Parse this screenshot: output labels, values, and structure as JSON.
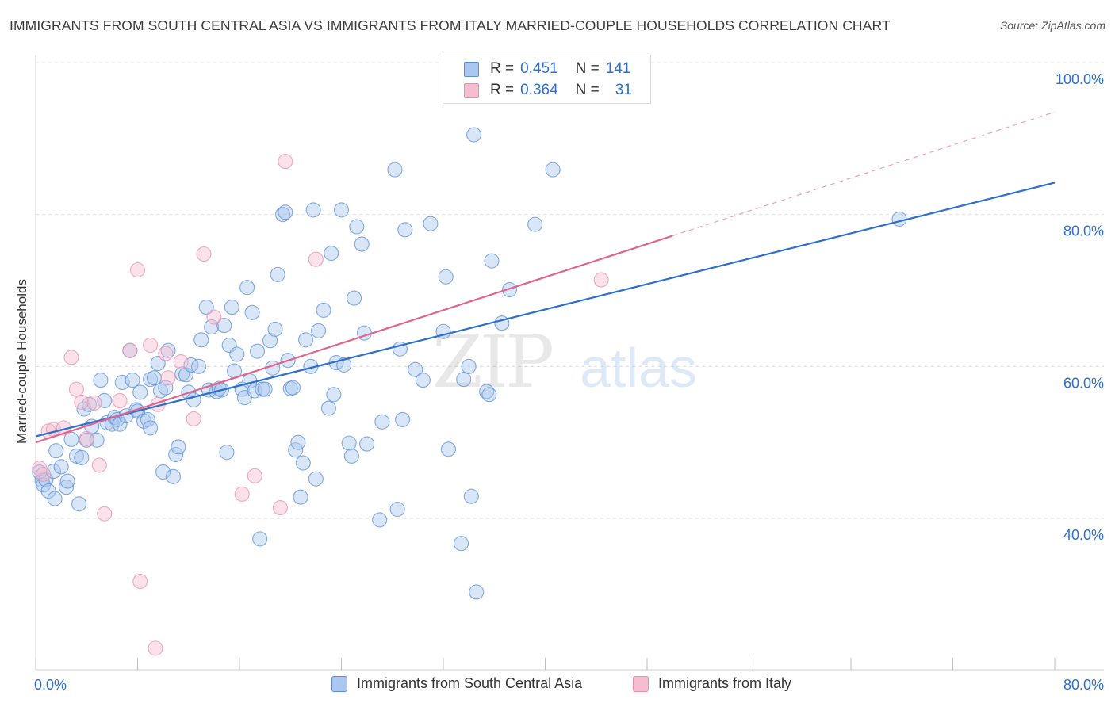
{
  "title": "IMMIGRANTS FROM SOUTH CENTRAL ASIA VS IMMIGRANTS FROM ITALY MARRIED-COUPLE HOUSEHOLDS CORRELATION CHART",
  "source": "Source: ZipAtlas.com",
  "watermark": {
    "zip": "ZIP",
    "atlas": "atlas"
  },
  "colors": {
    "blue": "#2d6fcf",
    "blue_fill": "#aac7f0",
    "pink": "#e0648e",
    "pink_fill": "#f6bcd0",
    "grid": "#dedede",
    "tick_label": "#2d6fcf"
  },
  "legend": {
    "rows": [
      {
        "r_label": "R =",
        "r_value": "0.451",
        "n_label": "N =",
        "n_value": "141"
      },
      {
        "r_label": "R =",
        "r_value": "0.364",
        "n_label": "N =",
        "n_value": "31"
      }
    ]
  },
  "bottom_legend": [
    {
      "label": "Immigrants from South Central Asia"
    },
    {
      "label": "Immigrants from Italy"
    }
  ],
  "chart_data": {
    "type": "scatter",
    "title": "IMMIGRANTS FROM SOUTH CENTRAL ASIA VS IMMIGRANTS FROM ITALY MARRIED-COUPLE HOUSEHOLDS CORRELATION CHART",
    "xlabel": "",
    "ylabel": "Married-couple Households",
    "xlim": [
      0,
      80
    ],
    "ylim": [
      18,
      100
    ],
    "x_tick_labels": [
      {
        "value": 0,
        "label": "0.0%"
      },
      {
        "value": 80,
        "label": "80.0%"
      }
    ],
    "y_tick_labels": [
      {
        "value": 40,
        "label": "40.0%"
      },
      {
        "value": 60,
        "label": "60.0%"
      },
      {
        "value": 80,
        "label": "80.0%"
      },
      {
        "value": 100,
        "label": "100.0%"
      }
    ],
    "x_minor_ticks": [
      0,
      8,
      16,
      24,
      32,
      40,
      48,
      56,
      64,
      72,
      80
    ],
    "y_grid": [
      40,
      60,
      80,
      100
    ],
    "series": [
      {
        "name": "Immigrants from South Central Asia",
        "color": "#2d6fcf",
        "R": 0.451,
        "N": 141,
        "trend": {
          "x0": 0,
          "y0": 50.8,
          "x1": 80,
          "y1": 84.2,
          "style": "solid"
        },
        "points": [
          [
            0.3,
            46.1
          ],
          [
            0.5,
            45.0
          ],
          [
            0.6,
            44.4
          ],
          [
            0.8,
            45.1
          ],
          [
            1.0,
            43.6
          ],
          [
            1.4,
            46.2
          ],
          [
            1.5,
            42.6
          ],
          [
            1.6,
            48.9
          ],
          [
            2.0,
            46.8
          ],
          [
            2.4,
            44.1
          ],
          [
            2.5,
            44.9
          ],
          [
            2.8,
            50.4
          ],
          [
            3.2,
            48.2
          ],
          [
            3.4,
            41.9
          ],
          [
            3.6,
            48.0
          ],
          [
            3.8,
            54.4
          ],
          [
            4.0,
            50.3
          ],
          [
            4.2,
            55.0
          ],
          [
            4.4,
            52.1
          ],
          [
            4.8,
            50.3
          ],
          [
            5.1,
            58.2
          ],
          [
            5.4,
            55.5
          ],
          [
            5.6,
            52.6
          ],
          [
            6.0,
            52.4
          ],
          [
            6.2,
            53.3
          ],
          [
            6.4,
            53.0
          ],
          [
            6.6,
            52.4
          ],
          [
            6.8,
            57.9
          ],
          [
            7.1,
            53.5
          ],
          [
            7.4,
            62.1
          ],
          [
            7.6,
            58.2
          ],
          [
            7.9,
            54.3
          ],
          [
            8.0,
            54.1
          ],
          [
            8.2,
            56.6
          ],
          [
            8.5,
            52.8
          ],
          [
            8.8,
            53.0
          ],
          [
            9.0,
            51.9
          ],
          [
            9.0,
            58.3
          ],
          [
            9.3,
            58.5
          ],
          [
            9.6,
            60.4
          ],
          [
            9.8,
            56.8
          ],
          [
            10.0,
            46.1
          ],
          [
            10.2,
            57.2
          ],
          [
            10.4,
            62.1
          ],
          [
            10.8,
            45.5
          ],
          [
            11.0,
            48.4
          ],
          [
            11.2,
            49.4
          ],
          [
            11.5,
            59.0
          ],
          [
            11.8,
            58.9
          ],
          [
            12.0,
            56.6
          ],
          [
            12.2,
            60.2
          ],
          [
            12.4,
            55.6
          ],
          [
            12.8,
            60.0
          ],
          [
            13.0,
            63.5
          ],
          [
            13.4,
            67.8
          ],
          [
            13.6,
            56.9
          ],
          [
            13.8,
            65.2
          ],
          [
            14.2,
            56.7
          ],
          [
            14.4,
            57.1
          ],
          [
            14.6,
            56.9
          ],
          [
            14.8,
            65.4
          ],
          [
            15.0,
            48.7
          ],
          [
            15.2,
            62.8
          ],
          [
            15.4,
            67.8
          ],
          [
            15.6,
            59.4
          ],
          [
            15.8,
            61.6
          ],
          [
            16.2,
            57.0
          ],
          [
            16.4,
            55.9
          ],
          [
            16.6,
            70.4
          ],
          [
            16.8,
            58.1
          ],
          [
            17.0,
            67.1
          ],
          [
            17.2,
            56.8
          ],
          [
            17.4,
            62.0
          ],
          [
            17.6,
            37.3
          ],
          [
            17.8,
            57.0
          ],
          [
            18.0,
            57.0
          ],
          [
            18.4,
            63.4
          ],
          [
            18.6,
            59.8
          ],
          [
            18.8,
            64.9
          ],
          [
            19.0,
            72.1
          ],
          [
            19.4,
            80.0
          ],
          [
            19.6,
            80.3
          ],
          [
            19.8,
            60.8
          ],
          [
            20.0,
            57.1
          ],
          [
            20.2,
            57.2
          ],
          [
            20.4,
            49.0
          ],
          [
            20.6,
            50.0
          ],
          [
            20.8,
            42.8
          ],
          [
            21.0,
            47.3
          ],
          [
            21.2,
            63.5
          ],
          [
            21.6,
            60.0
          ],
          [
            21.8,
            80.6
          ],
          [
            22.0,
            45.2
          ],
          [
            22.2,
            64.7
          ],
          [
            22.6,
            67.4
          ],
          [
            23.0,
            54.5
          ],
          [
            23.2,
            74.9
          ],
          [
            23.4,
            56.3
          ],
          [
            23.6,
            60.5
          ],
          [
            24.0,
            80.6
          ],
          [
            24.2,
            60.2
          ],
          [
            24.6,
            49.9
          ],
          [
            24.8,
            48.2
          ],
          [
            25.0,
            69.0
          ],
          [
            25.2,
            78.4
          ],
          [
            25.6,
            76.1
          ],
          [
            25.8,
            64.4
          ],
          [
            26.0,
            49.8
          ],
          [
            27.0,
            39.8
          ],
          [
            27.2,
            52.7
          ],
          [
            28.2,
            85.9
          ],
          [
            28.4,
            41.2
          ],
          [
            28.6,
            62.3
          ],
          [
            28.8,
            53.0
          ],
          [
            29.0,
            78.0
          ],
          [
            29.8,
            59.6
          ],
          [
            30.4,
            58.2
          ],
          [
            31.0,
            78.8
          ],
          [
            32.0,
            64.6
          ],
          [
            32.2,
            71.8
          ],
          [
            32.4,
            49.1
          ],
          [
            33.4,
            36.7
          ],
          [
            33.6,
            58.3
          ],
          [
            34.0,
            60.0
          ],
          [
            34.2,
            42.9
          ],
          [
            34.4,
            90.5
          ],
          [
            34.6,
            30.3
          ],
          [
            35.4,
            56.7
          ],
          [
            35.6,
            56.3
          ],
          [
            35.8,
            73.9
          ],
          [
            36.6,
            65.7
          ],
          [
            37.2,
            70.1
          ],
          [
            39.2,
            78.7
          ],
          [
            40.6,
            85.9
          ],
          [
            67.8,
            79.4
          ]
        ]
      },
      {
        "name": "Immigrants from Italy",
        "color": "#e0648e",
        "R": 0.364,
        "N": 31,
        "trend": {
          "x0": 0,
          "y0": 50.0,
          "x1": 50,
          "y1": 77.2,
          "style": "solid",
          "dashed_extension": {
            "x1": 80,
            "y1": 93.5
          }
        },
        "points": [
          [
            0.3,
            46.6
          ],
          [
            0.6,
            45.8
          ],
          [
            1.0,
            51.5
          ],
          [
            1.4,
            51.7
          ],
          [
            2.2,
            51.9
          ],
          [
            2.8,
            61.2
          ],
          [
            3.2,
            57.0
          ],
          [
            3.6,
            55.3
          ],
          [
            4.0,
            50.5
          ],
          [
            4.6,
            55.2
          ],
          [
            5.0,
            47.0
          ],
          [
            5.4,
            40.6
          ],
          [
            6.6,
            55.5
          ],
          [
            7.4,
            62.1
          ],
          [
            8.0,
            72.7
          ],
          [
            8.2,
            31.7
          ],
          [
            9.0,
            62.8
          ],
          [
            9.4,
            22.9
          ],
          [
            9.6,
            55.0
          ],
          [
            10.2,
            61.7
          ],
          [
            10.4,
            58.5
          ],
          [
            11.4,
            60.6
          ],
          [
            12.4,
            53.1
          ],
          [
            13.2,
            74.8
          ],
          [
            14.0,
            66.5
          ],
          [
            16.2,
            43.2
          ],
          [
            17.2,
            45.6
          ],
          [
            19.2,
            41.4
          ],
          [
            19.6,
            87.0
          ],
          [
            22.0,
            74.1
          ],
          [
            44.4,
            71.4
          ]
        ]
      }
    ]
  }
}
